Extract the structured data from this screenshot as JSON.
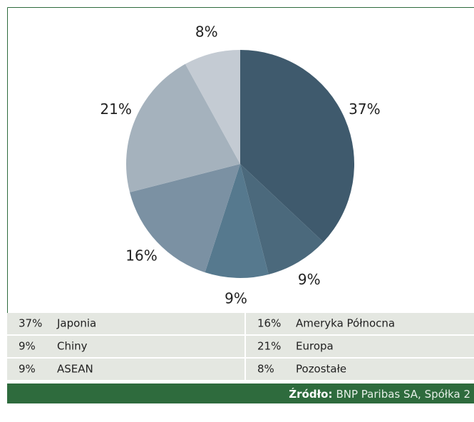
{
  "chart_data": {
    "type": "pie",
    "categories": [
      "Japonia",
      "Chiny",
      "ASEAN",
      "Ameryka Północna",
      "Europa",
      "Pozostałe"
    ],
    "values": [
      37,
      9,
      9,
      16,
      21,
      8
    ],
    "value_labels": [
      "37%",
      "9%",
      "9%",
      "16%",
      "21%",
      "8%"
    ],
    "colors": [
      "#3f5a6d",
      "#4b697c",
      "#56798e",
      "#7b91a3",
      "#a5b2bd",
      "#c4cbd3"
    ],
    "source": {
      "label": "Źródło:",
      "text": "BNP Paribas SA, Spółka 2"
    }
  }
}
